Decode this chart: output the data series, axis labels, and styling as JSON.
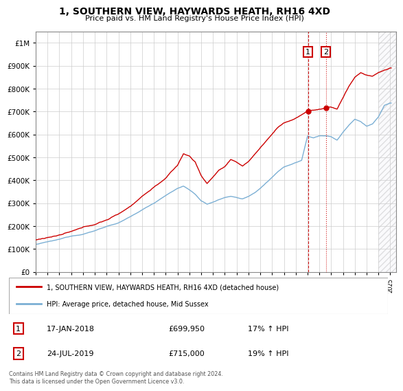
{
  "title": "1, SOUTHERN VIEW, HAYWARDS HEATH, RH16 4XD",
  "subtitle": "Price paid vs. HM Land Registry's House Price Index (HPI)",
  "legend_line1": "1, SOUTHERN VIEW, HAYWARDS HEATH, RH16 4XD (detached house)",
  "legend_line2": "HPI: Average price, detached house, Mid Sussex",
  "table_rows": [
    {
      "num": "1",
      "date": "17-JAN-2018",
      "price": "£699,950",
      "change": "17% ↑ HPI"
    },
    {
      "num": "2",
      "date": "24-JUL-2019",
      "price": "£715,000",
      "change": "19% ↑ HPI"
    }
  ],
  "footnote": "Contains HM Land Registry data © Crown copyright and database right 2024.\nThis data is licensed under the Open Government Licence v3.0.",
  "red_line_color": "#cc0000",
  "blue_line_color": "#7bafd4",
  "sale1_x": 2018.04,
  "sale1_y": 699950,
  "sale2_x": 2019.56,
  "sale2_y": 715000,
  "ylim": [
    0,
    1050000
  ],
  "xlim_start": 1995,
  "xlim_end": 2025.5
}
